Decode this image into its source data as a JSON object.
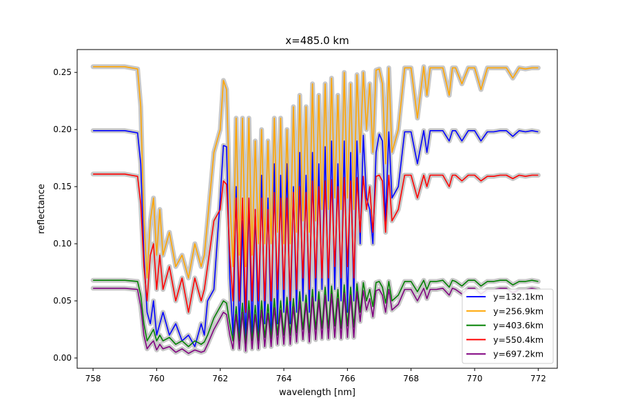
{
  "chart_data": {
    "type": "line",
    "title": "x=485.0 km",
    "xlabel": "wavelength [nm]",
    "ylabel": "reflectance",
    "xlim": [
      757.5,
      772.6
    ],
    "ylim": [
      -0.009,
      0.27
    ],
    "xticks": [
      758,
      760,
      762,
      764,
      766,
      768,
      770,
      772
    ],
    "yticks": [
      0.0,
      0.05,
      0.1,
      0.15,
      0.2,
      0.25
    ],
    "ytick_labels": [
      "0.00",
      "0.05",
      "0.10",
      "0.15",
      "0.20",
      "0.25"
    ],
    "grid": false,
    "legend_position": "lower-right",
    "uncertainty_band_color": "#c8c8c8",
    "series": [
      {
        "name": "y=132.1km",
        "color": "#0000ff",
        "x": [
          758,
          759,
          759.4,
          759.5,
          759.6,
          759.7,
          759.8,
          759.9,
          760.0,
          760.1,
          760.2,
          760.4,
          760.6,
          760.8,
          761.0,
          761.2,
          761.4,
          761.5,
          761.6,
          761.8,
          762.0,
          762.1,
          762.2,
          762.3,
          762.4,
          762.5,
          762.6,
          762.7,
          762.8,
          762.9,
          763.0,
          763.1,
          763.2,
          763.3,
          763.4,
          763.5,
          763.6,
          763.7,
          763.8,
          763.9,
          764.0,
          764.1,
          764.2,
          764.3,
          764.4,
          764.5,
          764.6,
          764.7,
          764.8,
          764.9,
          765.0,
          765.1,
          765.2,
          765.3,
          765.4,
          765.5,
          765.6,
          765.7,
          765.8,
          765.9,
          766.0,
          766.1,
          766.2,
          766.3,
          766.4,
          766.5,
          766.6,
          766.7,
          766.8,
          766.9,
          767.0,
          767.1,
          767.2,
          767.3,
          767.4,
          767.6,
          767.8,
          768.0,
          768.2,
          768.4,
          768.5,
          768.6,
          768.8,
          769.0,
          769.2,
          769.3,
          769.4,
          769.6,
          769.8,
          770.0,
          770.2,
          770.4,
          770.6,
          770.8,
          771.0,
          771.2,
          771.4,
          771.6,
          771.8,
          772.0
        ],
        "y": [
          0.199,
          0.199,
          0.197,
          0.17,
          0.09,
          0.04,
          0.03,
          0.05,
          0.02,
          0.03,
          0.04,
          0.02,
          0.03,
          0.015,
          0.02,
          0.01,
          0.03,
          0.02,
          0.05,
          0.06,
          0.14,
          0.186,
          0.185,
          0.07,
          0.02,
          0.15,
          0.02,
          0.12,
          0.01,
          0.14,
          0.02,
          0.13,
          0.02,
          0.16,
          0.03,
          0.14,
          0.02,
          0.17,
          0.03,
          0.16,
          0.04,
          0.17,
          0.03,
          0.15,
          0.04,
          0.18,
          0.05,
          0.16,
          0.04,
          0.18,
          0.05,
          0.17,
          0.06,
          0.185,
          0.05,
          0.19,
          0.06,
          0.17,
          0.05,
          0.19,
          0.04,
          0.18,
          0.05,
          0.19,
          0.1,
          0.195,
          0.14,
          0.13,
          0.1,
          0.18,
          0.196,
          0.19,
          0.12,
          0.198,
          0.14,
          0.15,
          0.198,
          0.198,
          0.17,
          0.199,
          0.18,
          0.199,
          0.199,
          0.199,
          0.19,
          0.199,
          0.199,
          0.19,
          0.199,
          0.199,
          0.19,
          0.198,
          0.198,
          0.199,
          0.199,
          0.194,
          0.199,
          0.198,
          0.199,
          0.198
        ]
      },
      {
        "name": "y=256.9km",
        "color": "#ffa500",
        "x": [
          758,
          759,
          759.4,
          759.5,
          759.6,
          759.7,
          759.8,
          759.9,
          760.0,
          760.1,
          760.2,
          760.4,
          760.6,
          760.8,
          761.0,
          761.2,
          761.4,
          761.5,
          761.6,
          761.8,
          762.0,
          762.1,
          762.2,
          762.3,
          762.4,
          762.5,
          762.6,
          762.7,
          762.8,
          762.9,
          763.0,
          763.1,
          763.2,
          763.3,
          763.4,
          763.5,
          763.6,
          763.7,
          763.8,
          763.9,
          764.0,
          764.1,
          764.2,
          764.3,
          764.4,
          764.5,
          764.6,
          764.7,
          764.8,
          764.9,
          765.0,
          765.1,
          765.2,
          765.3,
          765.4,
          765.5,
          765.6,
          765.7,
          765.8,
          765.9,
          766.0,
          766.1,
          766.2,
          766.3,
          766.4,
          766.5,
          766.6,
          766.7,
          766.8,
          766.9,
          767.0,
          767.1,
          767.2,
          767.3,
          767.4,
          767.6,
          767.8,
          768.0,
          768.2,
          768.4,
          768.5,
          768.6,
          768.8,
          769.0,
          769.2,
          769.3,
          769.4,
          769.6,
          769.8,
          770.0,
          770.2,
          770.4,
          770.6,
          770.8,
          771.0,
          771.2,
          771.4,
          771.6,
          771.8,
          772.0
        ],
        "y": [
          0.255,
          0.255,
          0.253,
          0.22,
          0.12,
          0.07,
          0.12,
          0.14,
          0.09,
          0.13,
          0.09,
          0.11,
          0.08,
          0.09,
          0.07,
          0.1,
          0.08,
          0.09,
          0.12,
          0.18,
          0.2,
          0.243,
          0.235,
          0.14,
          0.08,
          0.21,
          0.09,
          0.21,
          0.08,
          0.21,
          0.09,
          0.19,
          0.1,
          0.2,
          0.1,
          0.19,
          0.1,
          0.21,
          0.11,
          0.21,
          0.1,
          0.2,
          0.1,
          0.22,
          0.11,
          0.23,
          0.12,
          0.22,
          0.11,
          0.24,
          0.12,
          0.23,
          0.13,
          0.24,
          0.13,
          0.245,
          0.14,
          0.23,
          0.13,
          0.25,
          0.14,
          0.24,
          0.13,
          0.248,
          0.18,
          0.25,
          0.2,
          0.24,
          0.18,
          0.252,
          0.253,
          0.24,
          0.17,
          0.254,
          0.18,
          0.2,
          0.254,
          0.254,
          0.21,
          0.255,
          0.23,
          0.254,
          0.254,
          0.254,
          0.23,
          0.254,
          0.254,
          0.24,
          0.254,
          0.254,
          0.235,
          0.254,
          0.254,
          0.254,
          0.254,
          0.245,
          0.254,
          0.253,
          0.254,
          0.254
        ]
      },
      {
        "name": "y=403.6km",
        "color": "#008000",
        "x": [
          758,
          759,
          759.4,
          759.5,
          759.6,
          759.7,
          759.8,
          759.9,
          760.0,
          760.1,
          760.2,
          760.4,
          760.6,
          760.8,
          761.0,
          761.2,
          761.4,
          761.5,
          761.6,
          761.8,
          762.0,
          762.1,
          762.2,
          762.3,
          762.4,
          762.5,
          762.6,
          762.7,
          762.8,
          762.9,
          763.0,
          763.1,
          763.2,
          763.3,
          763.4,
          763.5,
          763.6,
          763.7,
          763.8,
          763.9,
          764.0,
          764.1,
          764.2,
          764.3,
          764.4,
          764.5,
          764.6,
          764.7,
          764.8,
          764.9,
          765.0,
          765.1,
          765.2,
          765.3,
          765.4,
          765.5,
          765.6,
          765.7,
          765.8,
          765.9,
          766.0,
          766.1,
          766.2,
          766.3,
          766.4,
          766.5,
          766.6,
          766.7,
          766.8,
          766.9,
          767.0,
          767.1,
          767.2,
          767.3,
          767.4,
          767.6,
          767.8,
          768.0,
          768.2,
          768.4,
          768.5,
          768.6,
          768.8,
          769.0,
          769.2,
          769.3,
          769.4,
          769.6,
          769.8,
          770.0,
          770.2,
          770.4,
          770.6,
          770.8,
          771.0,
          771.2,
          771.4,
          771.6,
          771.8,
          772.0
        ],
        "y": [
          0.068,
          0.068,
          0.067,
          0.055,
          0.03,
          0.015,
          0.02,
          0.025,
          0.015,
          0.02,
          0.015,
          0.018,
          0.012,
          0.015,
          0.01,
          0.015,
          0.012,
          0.014,
          0.02,
          0.035,
          0.045,
          0.05,
          0.048,
          0.03,
          0.015,
          0.045,
          0.015,
          0.048,
          0.012,
          0.05,
          0.015,
          0.046,
          0.015,
          0.05,
          0.018,
          0.047,
          0.017,
          0.052,
          0.02,
          0.05,
          0.02,
          0.053,
          0.02,
          0.052,
          0.022,
          0.058,
          0.025,
          0.055,
          0.022,
          0.06,
          0.025,
          0.058,
          0.026,
          0.062,
          0.026,
          0.063,
          0.028,
          0.06,
          0.026,
          0.064,
          0.028,
          0.062,
          0.027,
          0.065,
          0.04,
          0.066,
          0.05,
          0.06,
          0.045,
          0.066,
          0.067,
          0.062,
          0.048,
          0.067,
          0.05,
          0.055,
          0.067,
          0.067,
          0.058,
          0.068,
          0.06,
          0.067,
          0.067,
          0.068,
          0.062,
          0.068,
          0.067,
          0.063,
          0.068,
          0.068,
          0.063,
          0.067,
          0.067,
          0.068,
          0.068,
          0.064,
          0.067,
          0.067,
          0.068,
          0.067
        ]
      },
      {
        "name": "y=550.4km",
        "color": "#ff0000",
        "x": [
          758,
          759,
          759.4,
          759.5,
          759.6,
          759.7,
          759.8,
          759.9,
          760.0,
          760.1,
          760.2,
          760.4,
          760.6,
          760.8,
          761.0,
          761.2,
          761.4,
          761.5,
          761.6,
          761.8,
          762.0,
          762.1,
          762.2,
          762.3,
          762.4,
          762.5,
          762.6,
          762.7,
          762.8,
          762.9,
          763.0,
          763.1,
          763.2,
          763.3,
          763.4,
          763.5,
          763.6,
          763.7,
          763.8,
          763.9,
          764.0,
          764.1,
          764.2,
          764.3,
          764.4,
          764.5,
          764.6,
          764.7,
          764.8,
          764.9,
          765.0,
          765.1,
          765.2,
          765.3,
          765.4,
          765.5,
          765.6,
          765.7,
          765.8,
          765.9,
          766.0,
          766.1,
          766.2,
          766.3,
          766.4,
          766.5,
          766.6,
          766.7,
          766.8,
          766.9,
          767.0,
          767.1,
          767.2,
          767.3,
          767.4,
          767.6,
          767.8,
          768.0,
          768.2,
          768.4,
          768.5,
          768.6,
          768.8,
          769.0,
          769.2,
          769.3,
          769.4,
          769.6,
          769.8,
          770.0,
          770.2,
          770.4,
          770.6,
          770.8,
          771.0,
          771.2,
          771.4,
          771.6,
          771.8,
          772.0
        ],
        "y": [
          0.161,
          0.161,
          0.159,
          0.135,
          0.08,
          0.05,
          0.09,
          0.1,
          0.06,
          0.09,
          0.06,
          0.08,
          0.05,
          0.07,
          0.04,
          0.07,
          0.05,
          0.06,
          0.08,
          0.12,
          0.13,
          0.155,
          0.152,
          0.09,
          0.05,
          0.14,
          0.05,
          0.14,
          0.04,
          0.14,
          0.05,
          0.13,
          0.05,
          0.14,
          0.05,
          0.13,
          0.05,
          0.145,
          0.06,
          0.14,
          0.06,
          0.14,
          0.05,
          0.145,
          0.06,
          0.15,
          0.07,
          0.145,
          0.06,
          0.155,
          0.07,
          0.15,
          0.07,
          0.155,
          0.07,
          0.156,
          0.08,
          0.15,
          0.07,
          0.158,
          0.08,
          0.155,
          0.07,
          0.158,
          0.11,
          0.159,
          0.13,
          0.15,
          0.11,
          0.159,
          0.16,
          0.155,
          0.11,
          0.16,
          0.12,
          0.13,
          0.16,
          0.16,
          0.14,
          0.16,
          0.15,
          0.16,
          0.16,
          0.16,
          0.15,
          0.16,
          0.16,
          0.155,
          0.16,
          0.16,
          0.155,
          0.159,
          0.159,
          0.16,
          0.16,
          0.157,
          0.16,
          0.159,
          0.16,
          0.16
        ]
      },
      {
        "name": "y=697.2km",
        "color": "#800080",
        "x": [
          758,
          759,
          759.4,
          759.5,
          759.6,
          759.7,
          759.8,
          759.9,
          760.0,
          760.1,
          760.2,
          760.4,
          760.6,
          760.8,
          761.0,
          761.2,
          761.4,
          761.5,
          761.6,
          761.8,
          762.0,
          762.1,
          762.2,
          762.3,
          762.4,
          762.5,
          762.6,
          762.7,
          762.8,
          762.9,
          763.0,
          763.1,
          763.2,
          763.3,
          763.4,
          763.5,
          763.6,
          763.7,
          763.8,
          763.9,
          764.0,
          764.1,
          764.2,
          764.3,
          764.4,
          764.5,
          764.6,
          764.7,
          764.8,
          764.9,
          765.0,
          765.1,
          765.2,
          765.3,
          765.4,
          765.5,
          765.6,
          765.7,
          765.8,
          765.9,
          766.0,
          766.1,
          766.2,
          766.3,
          766.4,
          766.5,
          766.6,
          766.7,
          766.8,
          766.9,
          767.0,
          767.1,
          767.2,
          767.3,
          767.4,
          767.6,
          767.8,
          768.0,
          768.2,
          768.4,
          768.5,
          768.6,
          768.8,
          769.0,
          769.2,
          769.3,
          769.4,
          769.6,
          769.8,
          770.0,
          770.2,
          770.4,
          770.6,
          770.8,
          771.0,
          771.2,
          771.4,
          771.6,
          771.8,
          772.0
        ],
        "y": [
          0.061,
          0.061,
          0.06,
          0.045,
          0.02,
          0.008,
          0.012,
          0.015,
          0.007,
          0.012,
          0.008,
          0.01,
          0.005,
          0.008,
          0.004,
          0.007,
          0.005,
          0.006,
          0.012,
          0.025,
          0.035,
          0.04,
          0.038,
          0.02,
          0.008,
          0.038,
          0.008,
          0.04,
          0.006,
          0.042,
          0.008,
          0.038,
          0.008,
          0.042,
          0.01,
          0.039,
          0.01,
          0.044,
          0.012,
          0.042,
          0.012,
          0.046,
          0.012,
          0.045,
          0.014,
          0.05,
          0.016,
          0.048,
          0.014,
          0.053,
          0.016,
          0.051,
          0.017,
          0.055,
          0.017,
          0.056,
          0.018,
          0.052,
          0.017,
          0.057,
          0.018,
          0.055,
          0.018,
          0.058,
          0.032,
          0.059,
          0.042,
          0.052,
          0.036,
          0.059,
          0.06,
          0.055,
          0.04,
          0.06,
          0.042,
          0.047,
          0.06,
          0.06,
          0.05,
          0.061,
          0.052,
          0.06,
          0.06,
          0.061,
          0.055,
          0.061,
          0.06,
          0.056,
          0.061,
          0.061,
          0.056,
          0.06,
          0.06,
          0.061,
          0.061,
          0.057,
          0.06,
          0.06,
          0.061,
          0.06
        ]
      }
    ]
  }
}
